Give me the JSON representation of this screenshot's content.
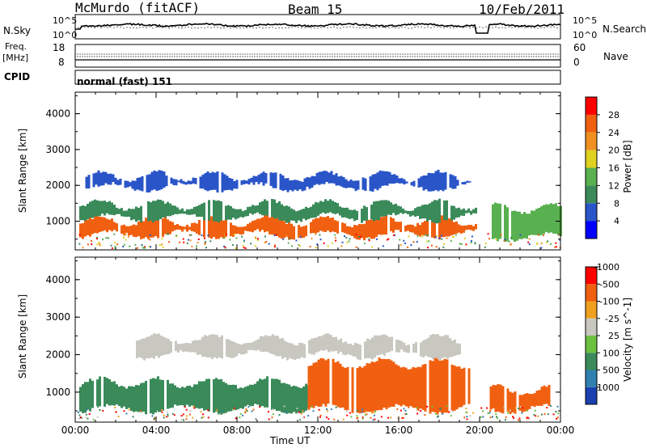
{
  "header": {
    "station": "McMurdo (fitACF)",
    "beam": "Beam 15",
    "date": "10/Feb/2011"
  },
  "top_panels": {
    "nsky_label": "N.Sky",
    "nsearch_label": "N.Search",
    "noise_ticks": [
      "10^5",
      "10^0"
    ],
    "freq_label_1": "Freq.",
    "freq_label_2": "[MHz]",
    "freq_ticks": [
      "18",
      "8"
    ],
    "nave_label": "Nave",
    "nave_ticks": [
      "60",
      "0"
    ],
    "cpid_label": "CPID",
    "cpid_value": "normal (fast) 151"
  },
  "x_axis": {
    "label": "Time UT",
    "ticks": [
      "00:00",
      "04:00",
      "08:00",
      "12:00",
      "16:00",
      "20:00",
      "00:00"
    ]
  },
  "chart_data": [
    {
      "type": "heatmap",
      "name": "Power panel",
      "ylabel": "Slant Range [km]",
      "yticks": [
        1000,
        2000,
        3000,
        4000
      ],
      "ylim": [
        200,
        4600
      ],
      "xlim_hours": [
        0,
        24
      ],
      "colorbar": {
        "label": "Power [dB]",
        "ticks": [
          4,
          8,
          12,
          16,
          20,
          24,
          28
        ],
        "colors": [
          "#0000ff",
          "#2a55c8",
          "#3a8a5a",
          "#58b050",
          "#e0d020",
          "#f09020",
          "#f06010",
          "#ff0000"
        ]
      },
      "regions": [
        {
          "x": [
            0.2,
            19.8
          ],
          "y": [
            580,
            1050
          ],
          "value": 26
        },
        {
          "x": [
            0.2,
            19.8
          ],
          "y": [
            1050,
            1500
          ],
          "value": 10
        },
        {
          "x": [
            0.5,
            19.5
          ],
          "y": [
            1900,
            2300
          ],
          "value": 6
        },
        {
          "x": [
            20.6,
            24
          ],
          "y": [
            500,
            1400
          ],
          "value": 12
        }
      ]
    },
    {
      "type": "heatmap",
      "name": "Velocity panel",
      "ylabel": "Slant Range [km]",
      "yticks": [
        1000,
        2000,
        3000,
        4000
      ],
      "ylim": [
        200,
        4600
      ],
      "xlim_hours": [
        0,
        24
      ],
      "colorbar": {
        "label": "Velocity [m s^-1]",
        "ticks": [
          1000,
          500,
          100,
          25,
          -25,
          -100,
          -500,
          -1000
        ],
        "colors": [
          "#1a40b0",
          "#3080b0",
          "#3a8a5a",
          "#6cc040",
          "#c8c8c0",
          "#f0a020",
          "#f06010",
          "#ff0000"
        ]
      },
      "regions": [
        {
          "x": [
            0.2,
            11.5
          ],
          "y": [
            500,
            1300
          ],
          "value": 300
        },
        {
          "x": [
            11.5,
            19.5
          ],
          "y": [
            500,
            1800
          ],
          "value": -300
        },
        {
          "x": [
            3,
            19
          ],
          "y": [
            1950,
            2450
          ],
          "value": 0
        },
        {
          "x": [
            20.5,
            23.5
          ],
          "y": [
            500,
            1100
          ],
          "value": -300
        }
      ]
    }
  ]
}
